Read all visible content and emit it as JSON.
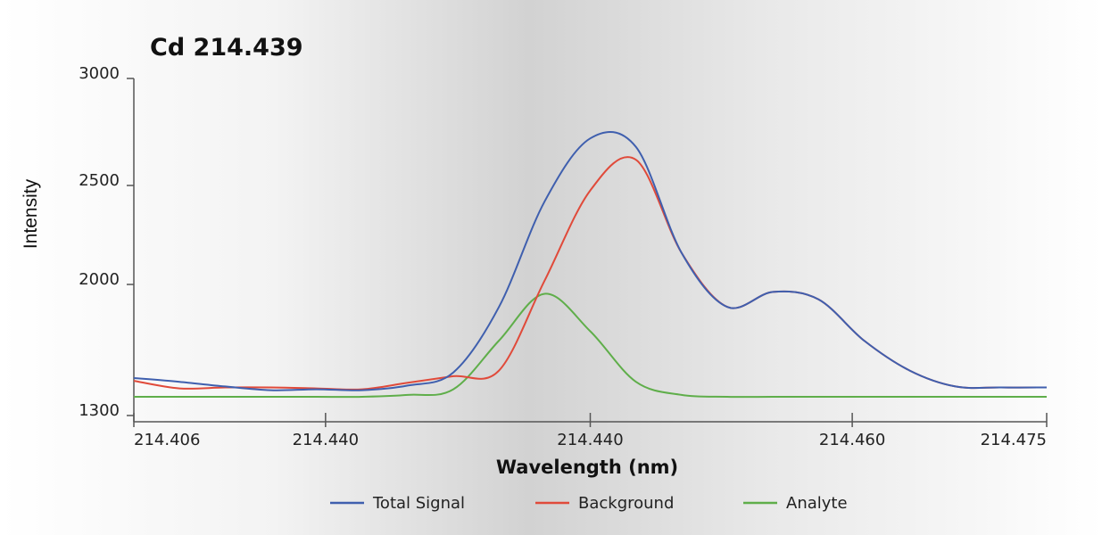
{
  "chart_data": {
    "type": "line",
    "title": "Cd 214.439",
    "xlabel": "Wavelength (nm)",
    "ylabel": "Intensity",
    "x_tick_labels": [
      "214.406",
      "214.440",
      "214.440",
      "214.460",
      "214.475"
    ],
    "y_ticks": [
      1300,
      2000,
      2500,
      3000
    ],
    "ylim": [
      1300,
      3000
    ],
    "legend_position": "bottom-center",
    "grid": false,
    "x": [
      0,
      0.05,
      0.1,
      0.15,
      0.2,
      0.25,
      0.3,
      0.35,
      0.4,
      0.45,
      0.5,
      0.55,
      0.6,
      0.65,
      0.7,
      0.75,
      0.8,
      0.85,
      0.9,
      0.95,
      1.0
    ],
    "series": [
      {
        "name": "Total Signal",
        "color": "#3f5fae",
        "values": [
          1500,
          1480,
          1455,
          1435,
          1440,
          1435,
          1460,
          1530,
          1880,
          2420,
          2720,
          2680,
          2160,
          1880,
          1960,
          1920,
          1700,
          1540,
          1455,
          1450,
          1450
        ]
      },
      {
        "name": "Background",
        "color": "#e04a3a",
        "values": [
          1485,
          1445,
          1450,
          1450,
          1445,
          1440,
          1475,
          1510,
          1540,
          2020,
          2475,
          2620,
          2160,
          1880,
          1960,
          1920,
          1700,
          1540,
          1455,
          1450,
          1450
        ]
      },
      {
        "name": "Analyte",
        "color": "#5fae4a",
        "values": [
          1400,
          1400,
          1400,
          1400,
          1400,
          1400,
          1410,
          1440,
          1700,
          1950,
          1750,
          1480,
          1410,
          1400,
          1400,
          1400,
          1400,
          1400,
          1400,
          1400,
          1400
        ]
      }
    ]
  }
}
